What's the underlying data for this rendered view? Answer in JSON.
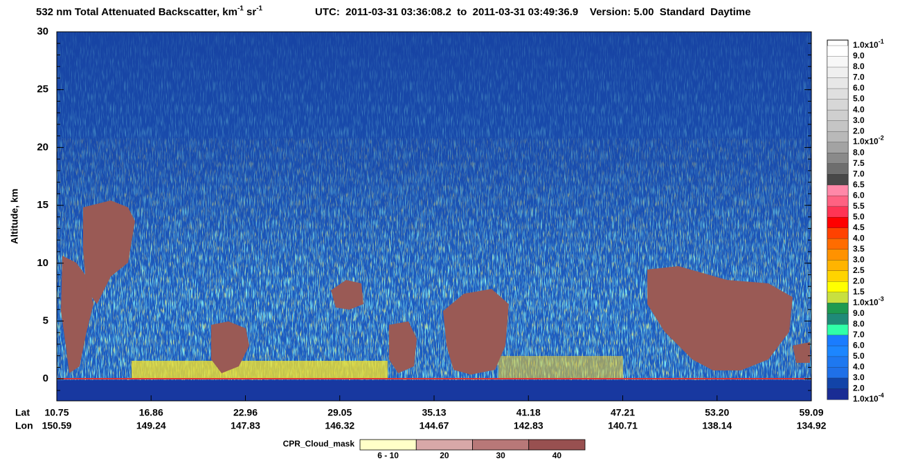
{
  "chart_data": {
    "type": "heatmap",
    "title": [
      "532 nm Total Attenuated Backscatter, km",
      "-1",
      " sr",
      "-1"
    ],
    "subtitle": "UTC:  2011-03-31 03:36:08.2  to  2011-03-31 03:49:36.9    Version: 5.00  Standard  Daytime",
    "ylabel": "Altitude, km",
    "ylim": [
      -1.9,
      30
    ],
    "yticks": [
      0,
      5,
      10,
      15,
      20,
      25,
      30
    ],
    "x_rows": [
      {
        "name": "Lat",
        "labels": [
          "10.75",
          "16.86",
          "22.96",
          "29.05",
          "35.13",
          "41.18",
          "47.21",
          "53.20",
          "59.09"
        ]
      },
      {
        "name": "Lon",
        "labels": [
          "150.59",
          "149.24",
          "147.83",
          "146.32",
          "144.67",
          "142.83",
          "140.71",
          "138.14",
          "134.92"
        ]
      }
    ],
    "colorbar": {
      "labels": [
        [
          "1.0x10",
          "-1"
        ],
        "9.0",
        "8.0",
        "7.0",
        "6.0",
        "5.0",
        "4.0",
        "3.0",
        "2.0",
        [
          "1.0x10",
          "-2"
        ],
        "8.0",
        "7.5",
        "7.0",
        "6.5",
        "6.0",
        "5.5",
        "5.0",
        "4.5",
        "4.0",
        "3.5",
        "3.0",
        "2.5",
        "2.0",
        "1.5",
        [
          "1.0x10",
          "-3"
        ],
        "9.0",
        "8.0",
        "7.0",
        "6.0",
        "5.0",
        "4.0",
        "3.0",
        "2.0",
        [
          "1.0x10",
          "-4"
        ]
      ],
      "colors": [
        "#ffffff",
        "#f7f7f7",
        "#efefef",
        "#e7e7e7",
        "#dfdfdf",
        "#d7d7d7",
        "#cfcfcf",
        "#c5c5c5",
        "#b9b9b9",
        "#a3a3a3",
        "#8a8a8a",
        "#6e6e6e",
        "#484848",
        "#ff88a8",
        "#ff6282",
        "#ff3454",
        "#ff0000",
        "#ff4200",
        "#ff6c00",
        "#ff9200",
        "#ffb400",
        "#ffd400",
        "#ffff00",
        "#c8e040",
        "#1e9a50",
        "#1f8a78",
        "#30ffa8",
        "#1a7cff",
        "#1c86ff",
        "#1e78f0",
        "#1f70e8",
        "#1244a8",
        "#1a2c94"
      ]
    },
    "cloud_mask": {
      "title": "CPR_Cloud_mask",
      "labels": [
        "6 - 10",
        "20",
        "30",
        "40"
      ],
      "colors": [
        "#ffffc8",
        "#d8a8a8",
        "#b87878",
        "#985050"
      ]
    }
  }
}
